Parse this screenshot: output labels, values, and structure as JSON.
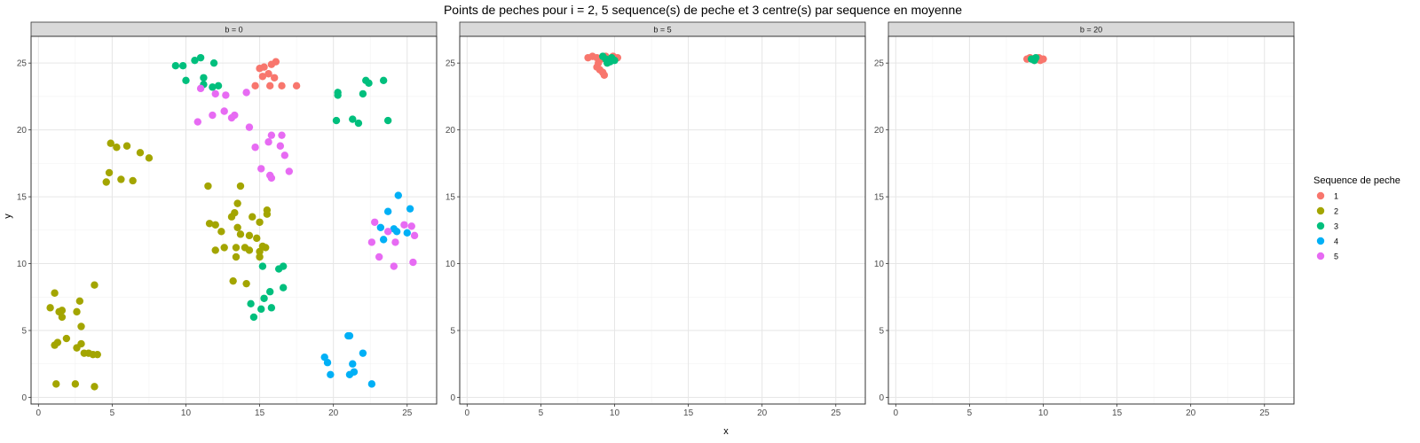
{
  "chart_data": {
    "type": "scatter",
    "title": "Points de peches pour i = 2, 5 sequence(s) de peche et 3 centre(s) par sequence en moyenne",
    "xlabel": "x",
    "ylabel": "y",
    "xlim": [
      -0.5,
      27
    ],
    "ylim": [
      -0.5,
      27
    ],
    "xticks": [
      0,
      5,
      10,
      15,
      20,
      25
    ],
    "yticks": [
      0,
      5,
      10,
      15,
      20,
      25
    ],
    "grid": true,
    "legend": {
      "title": "Sequence de peche",
      "placement": "right",
      "entries": [
        "1",
        "2",
        "3",
        "4",
        "5"
      ]
    },
    "colors": {
      "1": "#F8766D",
      "2": "#A3A500",
      "3": "#00BF7D",
      "4": "#00B0F6",
      "5": "#E76BF3"
    },
    "panels": [
      {
        "strip": "b = 0",
        "series": [
          {
            "name": "1",
            "points": [
              [
                15.0,
                24.6
              ],
              [
                15.3,
                24.7
              ],
              [
                15.8,
                24.9
              ],
              [
                16.1,
                25.1
              ],
              [
                15.6,
                24.2
              ],
              [
                15.2,
                24.0
              ],
              [
                16.0,
                23.9
              ],
              [
                14.7,
                23.3
              ],
              [
                15.7,
                23.3
              ],
              [
                16.5,
                23.3
              ],
              [
                17.5,
                23.3
              ]
            ]
          },
          {
            "name": "2",
            "points": [
              [
                4.9,
                19.0
              ],
              [
                5.3,
                18.7
              ],
              [
                6.0,
                18.8
              ],
              [
                6.9,
                18.3
              ],
              [
                7.5,
                17.9
              ],
              [
                4.8,
                16.8
              ],
              [
                4.6,
                16.1
              ],
              [
                5.6,
                16.3
              ],
              [
                6.4,
                16.2
              ],
              [
                11.5,
                15.8
              ],
              [
                13.7,
                15.8
              ],
              [
                13.5,
                14.5
              ],
              [
                15.5,
                14.0
              ],
              [
                15.5,
                13.7
              ],
              [
                11.6,
                13.0
              ],
              [
                12.0,
                12.9
              ],
              [
                13.1,
                13.5
              ],
              [
                13.3,
                13.8
              ],
              [
                14.5,
                13.5
              ],
              [
                15.0,
                13.1
              ],
              [
                12.4,
                12.4
              ],
              [
                13.5,
                12.7
              ],
              [
                13.7,
                12.2
              ],
              [
                14.3,
                12.1
              ],
              [
                14.8,
                11.9
              ],
              [
                12.0,
                11.0
              ],
              [
                12.6,
                11.2
              ],
              [
                13.4,
                11.2
              ],
              [
                14.0,
                11.2
              ],
              [
                14.3,
                11.0
              ],
              [
                15.2,
                11.3
              ],
              [
                15.4,
                11.2
              ],
              [
                15.0,
                10.9
              ],
              [
                15.0,
                10.5
              ],
              [
                13.4,
                10.5
              ],
              [
                13.2,
                8.7
              ],
              [
                14.1,
                8.5
              ],
              [
                1.1,
                7.8
              ],
              [
                3.8,
                8.4
              ],
              [
                2.8,
                7.2
              ],
              [
                0.8,
                6.7
              ],
              [
                1.4,
                6.4
              ],
              [
                1.6,
                6.5
              ],
              [
                2.6,
                6.4
              ],
              [
                1.6,
                6.0
              ],
              [
                2.9,
                5.3
              ],
              [
                1.3,
                4.1
              ],
              [
                1.1,
                3.9
              ],
              [
                1.9,
                4.4
              ],
              [
                2.9,
                4.0
              ],
              [
                2.6,
                3.7
              ],
              [
                3.1,
                3.3
              ],
              [
                3.4,
                3.3
              ],
              [
                3.7,
                3.2
              ],
              [
                4.0,
                3.2
              ],
              [
                1.2,
                1.0
              ],
              [
                2.5,
                1.0
              ],
              [
                3.8,
                0.8
              ]
            ]
          },
          {
            "name": "3",
            "points": [
              [
                9.3,
                24.8
              ],
              [
                9.8,
                24.8
              ],
              [
                10.6,
                25.2
              ],
              [
                11.0,
                25.4
              ],
              [
                11.9,
                25.0
              ],
              [
                11.2,
                23.9
              ],
              [
                10.0,
                23.7
              ],
              [
                11.2,
                23.4
              ],
              [
                11.8,
                23.2
              ],
              [
                12.2,
                23.3
              ],
              [
                20.3,
                22.6
              ],
              [
                20.3,
                22.8
              ],
              [
                22.0,
                22.7
              ],
              [
                22.2,
                23.7
              ],
              [
                22.4,
                23.5
              ],
              [
                23.4,
                23.7
              ],
              [
                20.2,
                20.7
              ],
              [
                21.3,
                20.8
              ],
              [
                21.7,
                20.5
              ],
              [
                23.7,
                20.7
              ],
              [
                15.2,
                9.8
              ],
              [
                16.3,
                9.6
              ],
              [
                16.6,
                9.8
              ],
              [
                15.7,
                7.9
              ],
              [
                16.6,
                8.2
              ],
              [
                14.4,
                7.0
              ],
              [
                15.3,
                7.4
              ],
              [
                14.6,
                6.0
              ],
              [
                15.1,
                6.6
              ],
              [
                15.8,
                6.7
              ]
            ]
          },
          {
            "name": "4",
            "points": [
              [
                24.4,
                15.1
              ],
              [
                25.2,
                14.1
              ],
              [
                23.7,
                13.9
              ],
              [
                23.2,
                12.7
              ],
              [
                24.1,
                12.6
              ],
              [
                24.3,
                12.4
              ],
              [
                25.0,
                12.3
              ],
              [
                23.4,
                11.8
              ],
              [
                19.4,
                3.0
              ],
              [
                19.6,
                2.6
              ],
              [
                21.1,
                4.6
              ],
              [
                21.0,
                4.6
              ],
              [
                22.0,
                3.3
              ],
              [
                19.8,
                1.7
              ],
              [
                21.3,
                2.5
              ],
              [
                21.1,
                1.7
              ],
              [
                21.4,
                1.9
              ],
              [
                22.6,
                1.0
              ]
            ]
          },
          {
            "name": "5",
            "points": [
              [
                11.0,
                23.1
              ],
              [
                12.0,
                22.7
              ],
              [
                12.7,
                22.6
              ],
              [
                14.1,
                22.8
              ],
              [
                12.6,
                21.4
              ],
              [
                13.3,
                21.1
              ],
              [
                13.1,
                20.9
              ],
              [
                11.8,
                21.1
              ],
              [
                10.8,
                20.6
              ],
              [
                14.3,
                20.2
              ],
              [
                15.8,
                19.6
              ],
              [
                16.5,
                19.6
              ],
              [
                15.6,
                19.1
              ],
              [
                14.7,
                18.7
              ],
              [
                16.4,
                18.8
              ],
              [
                16.7,
                18.1
              ],
              [
                15.1,
                17.1
              ],
              [
                15.8,
                16.4
              ],
              [
                15.7,
                16.6
              ],
              [
                17.0,
                16.9
              ],
              [
                22.8,
                13.1
              ],
              [
                23.7,
                12.4
              ],
              [
                24.8,
                12.9
              ],
              [
                25.3,
                12.8
              ],
              [
                25.5,
                12.1
              ],
              [
                22.6,
                11.6
              ],
              [
                24.2,
                11.6
              ],
              [
                23.1,
                10.5
              ],
              [
                25.4,
                10.1
              ],
              [
                24.1,
                9.8
              ]
            ]
          }
        ]
      },
      {
        "strip": "b = 5",
        "series": [
          {
            "name": "1",
            "points": [
              [
                8.2,
                25.4
              ],
              [
                8.5,
                25.5
              ],
              [
                8.8,
                25.4
              ],
              [
                9.1,
                25.3
              ],
              [
                8.9,
                25.0
              ],
              [
                8.8,
                24.7
              ],
              [
                9.0,
                24.5
              ],
              [
                9.2,
                24.3
              ],
              [
                9.3,
                24.1
              ],
              [
                9.6,
                25.2
              ],
              [
                9.9,
                25.5
              ],
              [
                10.2,
                25.4
              ],
              [
                9.4,
                25.5
              ]
            ]
          },
          {
            "name": "3",
            "points": [
              [
                9.2,
                25.5
              ],
              [
                9.4,
                25.3
              ],
              [
                9.6,
                25.2
              ],
              [
                9.8,
                25.4
              ],
              [
                9.7,
                25.1
              ],
              [
                10.0,
                25.2
              ],
              [
                9.5,
                25.0
              ]
            ]
          }
        ]
      },
      {
        "strip": "b = 20",
        "series": [
          {
            "name": "1",
            "points": [
              [
                8.9,
                25.3
              ],
              [
                9.1,
                25.4
              ],
              [
                9.4,
                25.2
              ],
              [
                9.7,
                25.4
              ],
              [
                10.0,
                25.3
              ],
              [
                9.8,
                25.2
              ]
            ]
          },
          {
            "name": "3",
            "points": [
              [
                9.2,
                25.3
              ],
              [
                9.5,
                25.4
              ],
              [
                9.4,
                25.2
              ]
            ]
          }
        ]
      }
    ]
  }
}
